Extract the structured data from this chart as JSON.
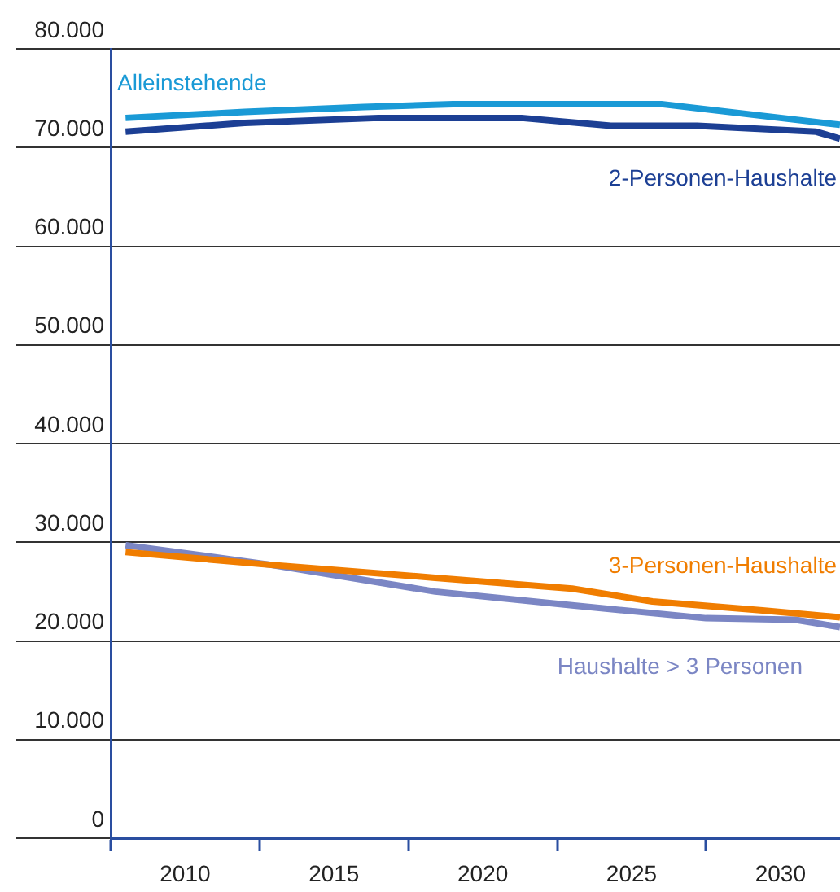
{
  "chart_data": {
    "type": "line",
    "marker": "none",
    "grid": "y",
    "xlim": [
      2007.5,
      2032
    ],
    "xticks": [
      {
        "value": 2007.5,
        "label": null
      },
      {
        "value": 2010,
        "label": "2010"
      },
      {
        "value": 2012.5,
        "label": null
      },
      {
        "value": 2015,
        "label": "2015"
      },
      {
        "value": 2017.5,
        "label": null
      },
      {
        "value": 2020,
        "label": "2020"
      },
      {
        "value": 2022.5,
        "label": null
      },
      {
        "value": 2025,
        "label": "2025"
      },
      {
        "value": 2027.5,
        "label": null
      },
      {
        "value": 2030,
        "label": "2030"
      }
    ],
    "ylim": [
      0,
      80000
    ],
    "yticks": [
      {
        "value": 0,
        "label": "0"
      },
      {
        "value": 10000,
        "label": "10.000"
      },
      {
        "value": 20000,
        "label": "20.000"
      },
      {
        "value": 30000,
        "label": "30.000"
      },
      {
        "value": 40000,
        "label": "40.000"
      },
      {
        "value": 50000,
        "label": "50.000"
      },
      {
        "value": 60000,
        "label": "60.000"
      },
      {
        "value": 70000,
        "label": "70.000"
      },
      {
        "value": 80000,
        "label": "80.000"
      }
    ],
    "series": [
      {
        "name": "Alleinstehende",
        "color": "#1a9ad6",
        "x": [
          2008,
          2012,
          2016,
          2019,
          2026,
          2032
        ],
        "values": [
          73000,
          73600,
          74100,
          74400,
          74400,
          72300
        ]
      },
      {
        "name": "2-Personen-Haushalte",
        "color": "#1c3f94",
        "x": [
          2008,
          2012,
          2016.5,
          2021.3,
          2024.3,
          2027.2,
          2031.2,
          2032
        ],
        "values": [
          71600,
          72500,
          73000,
          73000,
          72200,
          72200,
          71600,
          70900
        ]
      },
      {
        "name": "3-Personen-Haushalte",
        "color": "#f07d00",
        "x": [
          2008,
          2012.9,
          2018.4,
          2023,
          2025.7,
          2029.4,
          2032
        ],
        "values": [
          29000,
          27700,
          26400,
          25300,
          24000,
          23100,
          22400
        ]
      },
      {
        "name": "Haushalte > 3 Personen",
        "color": "#7b86c4",
        "x": [
          2008,
          2012.9,
          2018.4,
          2023,
          2027.5,
          2030.5,
          2032
        ],
        "values": [
          29700,
          27700,
          25000,
          23600,
          22300,
          22150,
          21400
        ]
      }
    ]
  }
}
